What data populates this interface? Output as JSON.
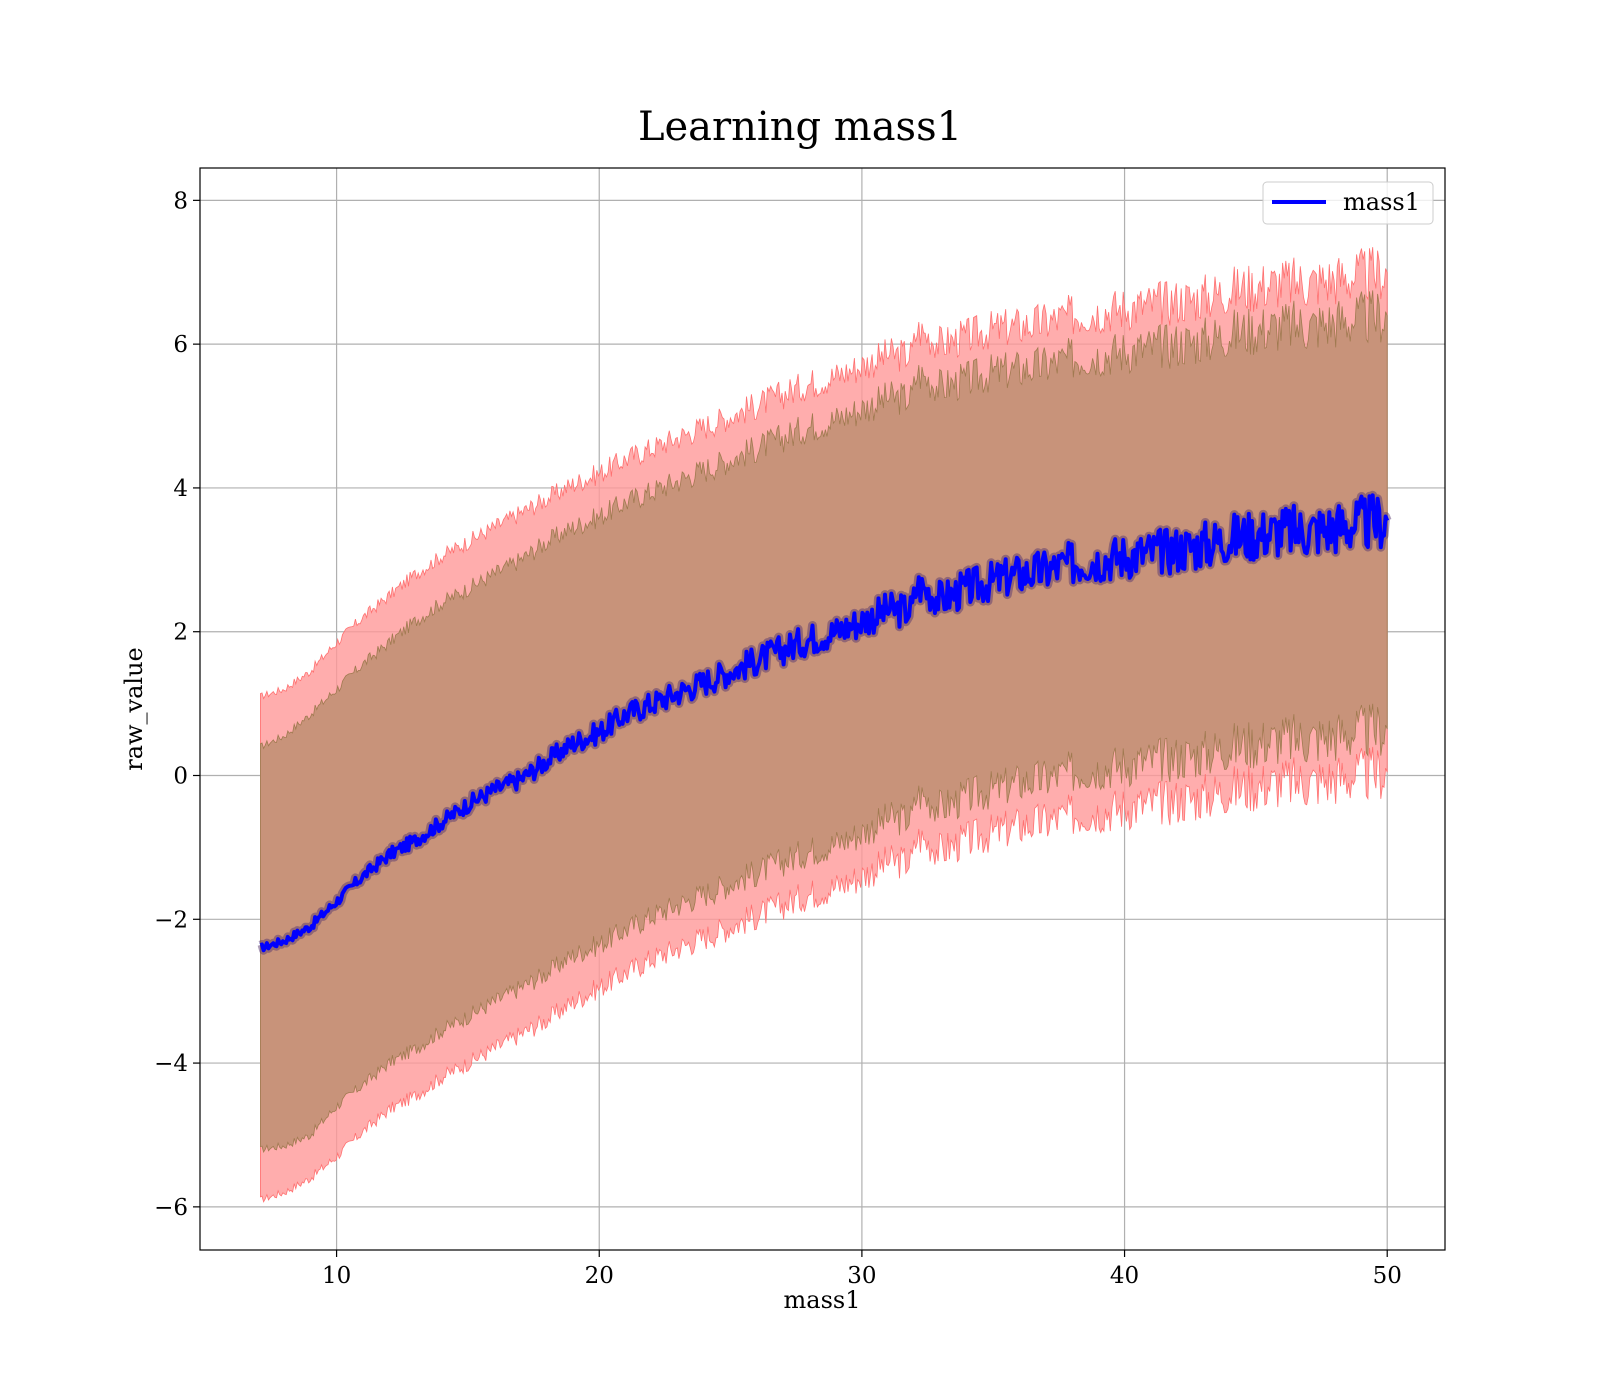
{
  "chart_data": {
    "type": "line",
    "title": "Learning mass1",
    "xlabel": "mass1",
    "ylabel": "raw_value",
    "xlim": [
      4.8,
      52.2
    ],
    "ylim": [
      -6.6,
      8.45
    ],
    "x_ticks": [
      {
        "value": 10,
        "label": "10"
      },
      {
        "value": 20,
        "label": "20"
      },
      {
        "value": 30,
        "label": "30"
      },
      {
        "value": 40,
        "label": "40"
      },
      {
        "value": 50,
        "label": "50"
      }
    ],
    "y_ticks": [
      {
        "value": -6,
        "label": "−6"
      },
      {
        "value": -4,
        "label": "−4"
      },
      {
        "value": -2,
        "label": "−2"
      },
      {
        "value": 0,
        "label": "0"
      },
      {
        "value": 2,
        "label": "2"
      },
      {
        "value": 4,
        "label": "4"
      },
      {
        "value": 6,
        "label": "6"
      },
      {
        "value": 8,
        "label": "8"
      }
    ],
    "grid": true,
    "legend_position": "top-right",
    "series": [
      {
        "name": "mass1",
        "color": "#0000ff"
      }
    ],
    "x": [
      7.1,
      8,
      9,
      10,
      11,
      12,
      13,
      14,
      15,
      16,
      17,
      18,
      19,
      20,
      21,
      22,
      23,
      24,
      25,
      26,
      27,
      28,
      29,
      30,
      31,
      31.9,
      32.1,
      33,
      34,
      35,
      36,
      37,
      38,
      39,
      40,
      41,
      42,
      43,
      44,
      45,
      46,
      47,
      48,
      49,
      50
    ],
    "mean": [
      -2.4,
      -2.3,
      -2.1,
      -1.75,
      -1.4,
      -1.1,
      -0.9,
      -0.65,
      -0.4,
      -0.2,
      -0.05,
      0.2,
      0.45,
      0.6,
      0.85,
      1.0,
      1.15,
      1.3,
      1.45,
      1.6,
      1.75,
      1.9,
      2.0,
      2.15,
      2.3,
      2.3,
      2.65,
      2.45,
      2.6,
      2.7,
      2.8,
      2.85,
      2.95,
      3.0,
      3.05,
      3.1,
      3.15,
      3.2,
      3.3,
      3.35,
      3.4,
      3.4,
      3.45,
      3.5,
      3.55
    ],
    "inner_upper": [
      0.4,
      0.55,
      0.85,
      1.2,
      1.55,
      1.85,
      2.15,
      2.4,
      2.6,
      2.8,
      3.0,
      3.25,
      3.45,
      3.6,
      3.8,
      3.95,
      4.1,
      4.25,
      4.4,
      4.55,
      4.7,
      4.85,
      4.95,
      5.1,
      5.25,
      5.25,
      5.6,
      5.4,
      5.5,
      5.6,
      5.65,
      5.7,
      5.8,
      5.85,
      5.9,
      5.95,
      6.0,
      6.05,
      6.15,
      6.2,
      6.25,
      6.25,
      6.3,
      6.35,
      6.4
    ],
    "inner_lower": [
      -5.2,
      -5.15,
      -5.0,
      -4.6,
      -4.3,
      -4.0,
      -3.8,
      -3.55,
      -3.35,
      -3.15,
      -2.95,
      -2.75,
      -2.5,
      -2.35,
      -2.15,
      -1.95,
      -1.8,
      -1.65,
      -1.5,
      -1.35,
      -1.2,
      -1.05,
      -0.95,
      -0.8,
      -0.6,
      -0.6,
      -0.25,
      -0.45,
      -0.3,
      -0.2,
      -0.1,
      -0.05,
      0.05,
      0.1,
      0.15,
      0.2,
      0.25,
      0.3,
      0.4,
      0.45,
      0.5,
      0.5,
      0.55,
      0.6,
      0.65
    ],
    "outer_upper": [
      1.1,
      1.2,
      1.45,
      1.85,
      2.2,
      2.5,
      2.8,
      3.05,
      3.25,
      3.45,
      3.65,
      3.85,
      4.05,
      4.2,
      4.4,
      4.55,
      4.7,
      4.85,
      5.0,
      5.15,
      5.3,
      5.45,
      5.55,
      5.7,
      5.85,
      5.85,
      6.2,
      6.0,
      6.1,
      6.2,
      6.25,
      6.3,
      6.4,
      6.45,
      6.5,
      6.55,
      6.6,
      6.65,
      6.75,
      6.8,
      6.85,
      6.85,
      6.9,
      6.95,
      7.0
    ],
    "outer_lower": [
      -5.9,
      -5.8,
      -5.6,
      -5.3,
      -4.95,
      -4.65,
      -4.45,
      -4.2,
      -4.0,
      -3.8,
      -3.6,
      -3.4,
      -3.15,
      -2.95,
      -2.75,
      -2.55,
      -2.4,
      -2.25,
      -2.1,
      -1.95,
      -1.8,
      -1.65,
      -1.55,
      -1.4,
      -1.2,
      -1.2,
      -0.85,
      -1.05,
      -0.9,
      -0.8,
      -0.7,
      -0.65,
      -0.55,
      -0.5,
      -0.45,
      -0.4,
      -0.35,
      -0.3,
      -0.2,
      -0.15,
      -0.1,
      -0.1,
      -0.05,
      0.0,
      0.05
    ],
    "band_colors": {
      "outer": "#ff9999",
      "inner": "#c8937a",
      "line": "#0000ff"
    }
  }
}
